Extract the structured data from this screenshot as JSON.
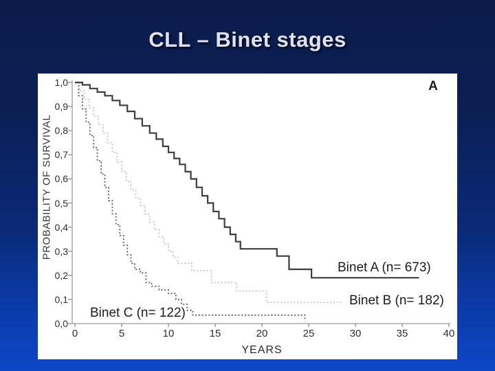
{
  "slide": {
    "title": "CLL – Binet stages"
  },
  "colors": {
    "background_top": "#0b1c4a",
    "background_bottom": "#0d47c6",
    "title_text": "#dfe1f5",
    "panel_background": "#ffffff",
    "axis_line": "#a9a9a9",
    "chart_text": "#2e2e2e"
  },
  "chart_data": {
    "type": "line",
    "subtype": "kaplan-meier-step-curves",
    "panel_label": "A",
    "xlabel": "YEARS",
    "ylabel": "PROBABILITY OF SURVIVAL",
    "xlim": [
      0,
      40
    ],
    "ylim": [
      0.0,
      1.0
    ],
    "grid": false,
    "legend_position": "inline-labels-next-to-curves",
    "x_ticks": [
      0,
      5,
      10,
      15,
      20,
      25,
      30,
      35,
      40
    ],
    "y_tick_values": [
      1.0,
      0.9,
      0.8,
      0.7,
      0.6,
      0.5,
      0.4,
      0.3,
      0.2,
      0.1,
      0.0
    ],
    "y_tick_labels": [
      "1,0",
      "0,9",
      "0,8",
      "0,7",
      "0,6",
      "0,5",
      "0,4",
      "0,3",
      "0,2",
      "0,1",
      "0,0"
    ],
    "series": [
      {
        "name": "Binet A",
        "label": "Binet A (n= 673)",
        "n": 673,
        "line_style": "solid",
        "color": "#3d3d3d",
        "points": [
          [
            0,
            1.0
          ],
          [
            0.8,
            0.99
          ],
          [
            1.6,
            0.975
          ],
          [
            2.4,
            0.96
          ],
          [
            3.2,
            0.945
          ],
          [
            4,
            0.925
          ],
          [
            4.8,
            0.905
          ],
          [
            5.6,
            0.88
          ],
          [
            6.4,
            0.85
          ],
          [
            7.2,
            0.82
          ],
          [
            8,
            0.79
          ],
          [
            8.7,
            0.765
          ],
          [
            9.4,
            0.735
          ],
          [
            10,
            0.71
          ],
          [
            10.6,
            0.685
          ],
          [
            11.2,
            0.66
          ],
          [
            11.8,
            0.63
          ],
          [
            12.4,
            0.6
          ],
          [
            13,
            0.565
          ],
          [
            13.6,
            0.53
          ],
          [
            14.2,
            0.5
          ],
          [
            14.8,
            0.465
          ],
          [
            15.4,
            0.435
          ],
          [
            16,
            0.4
          ],
          [
            16.6,
            0.37
          ],
          [
            17.2,
            0.34
          ],
          [
            17.7,
            0.31
          ],
          [
            21.6,
            0.28
          ],
          [
            22.9,
            0.225
          ],
          [
            25.3,
            0.19
          ],
          [
            36.8,
            0.19
          ]
        ]
      },
      {
        "name": "Binet B",
        "label": "Binet B (n= 182)",
        "n": 182,
        "line_style": "dotted",
        "color": "#c8c8c8",
        "points": [
          [
            0,
            1.0
          ],
          [
            0.5,
            0.965
          ],
          [
            1,
            0.93
          ],
          [
            1.5,
            0.895
          ],
          [
            2,
            0.86
          ],
          [
            2.5,
            0.825
          ],
          [
            3,
            0.79
          ],
          [
            3.5,
            0.75
          ],
          [
            4,
            0.71
          ],
          [
            4.5,
            0.67
          ],
          [
            5,
            0.63
          ],
          [
            5.5,
            0.59
          ],
          [
            6,
            0.555
          ],
          [
            6.5,
            0.52
          ],
          [
            7,
            0.49
          ],
          [
            7.5,
            0.455
          ],
          [
            8,
            0.42
          ],
          [
            8.5,
            0.39
          ],
          [
            9,
            0.36
          ],
          [
            9.5,
            0.33
          ],
          [
            10,
            0.3
          ],
          [
            10.5,
            0.275
          ],
          [
            11,
            0.25
          ],
          [
            12.5,
            0.22
          ],
          [
            14.6,
            0.17
          ],
          [
            17.3,
            0.135
          ],
          [
            20.5,
            0.088
          ],
          [
            28.5,
            0.088
          ]
        ]
      },
      {
        "name": "Binet C",
        "label": "Binet C (n= 122)",
        "n": 122,
        "line_style": "dotted",
        "color": "#686868",
        "points": [
          [
            0,
            1.0
          ],
          [
            0.4,
            0.945
          ],
          [
            0.8,
            0.89
          ],
          [
            1.2,
            0.835
          ],
          [
            1.6,
            0.78
          ],
          [
            2,
            0.73
          ],
          [
            2.4,
            0.675
          ],
          [
            2.8,
            0.62
          ],
          [
            3.2,
            0.565
          ],
          [
            3.6,
            0.51
          ],
          [
            4,
            0.455
          ],
          [
            4.4,
            0.41
          ],
          [
            4.8,
            0.365
          ],
          [
            5.2,
            0.325
          ],
          [
            5.6,
            0.285
          ],
          [
            6,
            0.25
          ],
          [
            6.4,
            0.225
          ],
          [
            7,
            0.21
          ],
          [
            7.6,
            0.17
          ],
          [
            8.2,
            0.155
          ],
          [
            9,
            0.14
          ],
          [
            10,
            0.125
          ],
          [
            10.8,
            0.1
          ],
          [
            11.4,
            0.08
          ],
          [
            12,
            0.055
          ],
          [
            12.6,
            0.035
          ],
          [
            24.5,
            0.035
          ],
          [
            24.6,
            0.01
          ]
        ]
      }
    ]
  }
}
